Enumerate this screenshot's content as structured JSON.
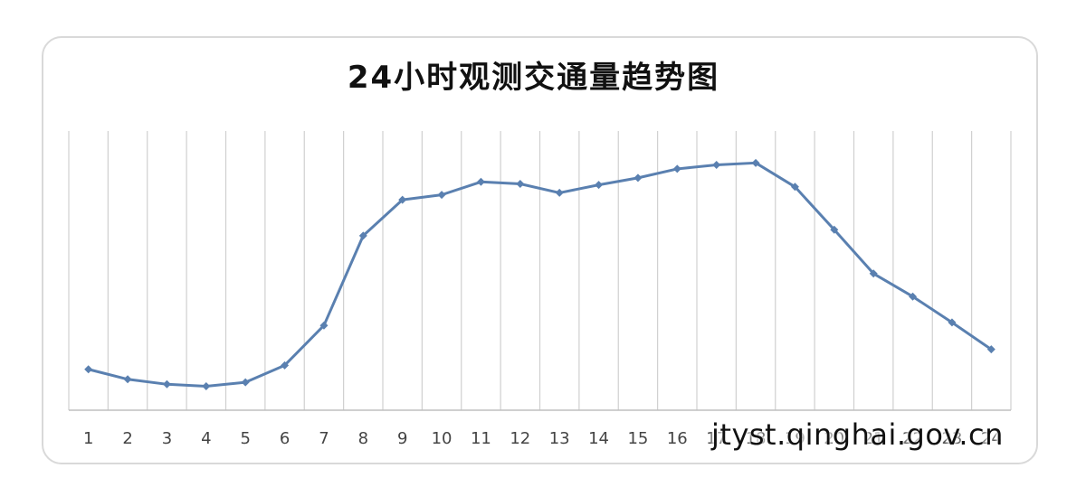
{
  "chart_data": {
    "type": "line",
    "title": "24小时观测交通量趋势图",
    "categories": [
      "1",
      "2",
      "3",
      "4",
      "5",
      "6",
      "7",
      "8",
      "9",
      "10",
      "11",
      "12",
      "13",
      "14",
      "15",
      "16",
      "17",
      "18",
      "19",
      "20",
      "21",
      "22",
      "23",
      "24"
    ],
    "series": [
      {
        "values": [
          41,
          31,
          26,
          24,
          28,
          45,
          85,
          175,
          211,
          216,
          229,
          227,
          218,
          226,
          233,
          242,
          246,
          248,
          224,
          181,
          137,
          114,
          88,
          61
        ]
      }
    ],
    "ylim": [
      0,
      280
    ],
    "grid": "vertical",
    "legend": "none",
    "line_color": "#5a80b0",
    "grid_color": "#d0d0d0",
    "axis_color": "#bfbfbf"
  },
  "watermark": "jtyst.qinghai.gov.cn"
}
